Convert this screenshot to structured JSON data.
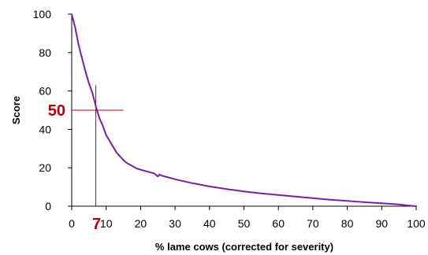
{
  "chart_data": {
    "type": "line",
    "title": "",
    "xlabel": "% lame cows (corrected for severity)",
    "ylabel": "Score",
    "xlim": [
      0,
      100
    ],
    "ylim": [
      0,
      100
    ],
    "xticks": [
      "0",
      "10",
      "20",
      "30",
      "40",
      "50",
      "60",
      "70",
      "80",
      "90",
      "100"
    ],
    "yticks": [
      "0",
      "20",
      "40",
      "60",
      "80",
      "100"
    ],
    "grid": false,
    "legend": "none",
    "colors": {
      "series": "#7B1FA2",
      "annotation": "#C00000",
      "axis": "#000000"
    },
    "series": [
      {
        "x": [
          0,
          1,
          2,
          3,
          4,
          5,
          6,
          7,
          8,
          9,
          10,
          11,
          12,
          13,
          14,
          15,
          16,
          17,
          18,
          19,
          20,
          22,
          24,
          25,
          25.5,
          26,
          28,
          30,
          35,
          40,
          45,
          50,
          55,
          60,
          65,
          70,
          75,
          80,
          85,
          90,
          95,
          98,
          100
        ],
        "y": [
          100,
          93,
          84,
          77,
          70,
          64,
          59,
          52,
          46,
          42,
          37,
          34,
          31,
          28,
          26,
          24,
          22.5,
          21.5,
          20.5,
          19.5,
          19,
          18,
          17,
          15.5,
          16.5,
          16,
          15,
          14,
          12,
          10.3,
          8.9,
          7.7,
          6.7,
          5.8,
          5,
          4.2,
          3.4,
          2.8,
          2.1,
          1.5,
          0.9,
          0.3,
          0
        ]
      }
    ],
    "annotations": [
      {
        "label": "50",
        "axis": "y",
        "value": 50
      },
      {
        "label": "7",
        "axis": "x",
        "value": 7
      }
    ]
  }
}
